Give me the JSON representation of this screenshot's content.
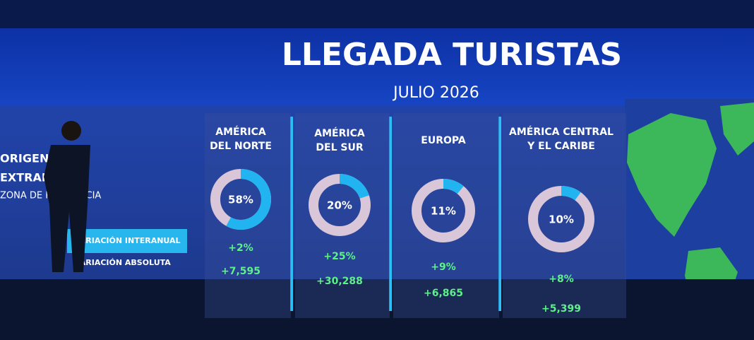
{
  "header": {
    "title": "LLEGADA TURISTAS",
    "subtitle": "JULIO 2026"
  },
  "side": {
    "lines": [
      "ORIGEN DE",
      "EXTRANJEROS",
      "ZONA DE RESIDENCIA"
    ]
  },
  "row_labels": [
    "VARIACIÓN INTERANUAL",
    "VARIACIÓN ABSOLUTA"
  ],
  "chart_data": [
    {
      "type": "pie",
      "title": [
        "AMÉRICA",
        "DEL NORTE"
      ],
      "values": [
        58
      ],
      "value_labels": [
        "58%"
      ],
      "color": "#22b4f0",
      "annotations": [
        "+2%",
        "+7,595"
      ]
    },
    {
      "type": "pie",
      "title": [
        "AMÉRICA",
        "DEL SUR"
      ],
      "values": [
        20
      ],
      "value_labels": [
        "20%"
      ],
      "color": "#22b4f0",
      "annotations": [
        "+25%",
        "+30,288"
      ]
    },
    {
      "type": "pie",
      "title": [
        "EUROPA"
      ],
      "values": [
        11
      ],
      "value_labels": [
        "11%"
      ],
      "color": "#22b4f0",
      "annotations": [
        "+9%",
        "+6,865"
      ]
    },
    {
      "type": "pie",
      "title": [
        "AMÉRICA CENTRAL",
        "Y EL CARIBE"
      ],
      "values": [
        10
      ],
      "value_labels": [
        "10%"
      ],
      "color": "#22b4f0",
      "annotations": [
        "+8%",
        "+5,399"
      ]
    }
  ]
}
